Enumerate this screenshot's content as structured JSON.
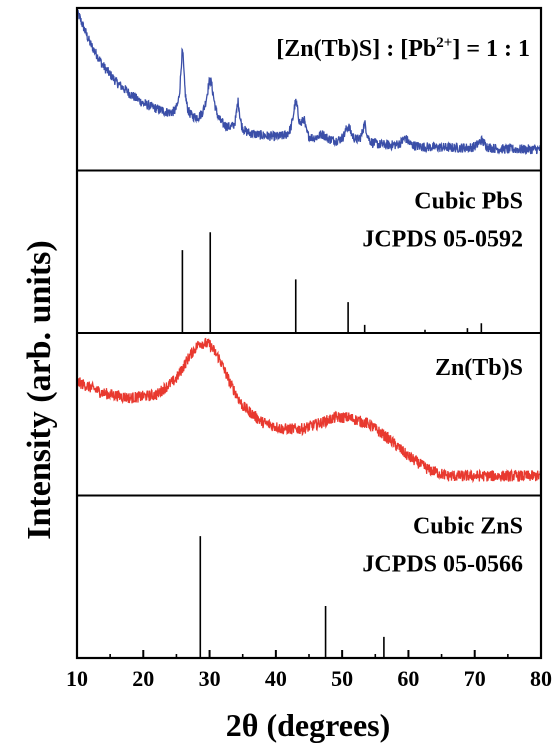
{
  "chart_data": {
    "type": "line",
    "xlabel": "2θ (degrees)",
    "ylabel": "Intensity (arb. units)",
    "xlim": [
      10,
      80
    ],
    "x_ticks": [
      "10",
      "20",
      "30",
      "40",
      "50",
      "60",
      "70",
      "80"
    ],
    "panels": [
      {
        "label_main": "[Zn(Tb)S] : [Pb",
        "label_sup": "2+",
        "label_end": "] = 1 : 1",
        "color": "#3b4fa8",
        "kind": "pattern",
        "series": {
          "base": [
            [
              10,
              0.98
            ],
            [
              12,
              0.78
            ],
            [
              14,
              0.64
            ],
            [
              16,
              0.54
            ],
            [
              18,
              0.47
            ],
            [
              20,
              0.41
            ],
            [
              24,
              0.34
            ],
            [
              28,
              0.29
            ],
            [
              32,
              0.25
            ],
            [
              36,
              0.22
            ],
            [
              40,
              0.2
            ],
            [
              45,
              0.18
            ],
            [
              50,
              0.165
            ],
            [
              55,
              0.155
            ],
            [
              60,
              0.145
            ],
            [
              65,
              0.14
            ],
            [
              70,
              0.135
            ],
            [
              75,
              0.13
            ],
            [
              80,
              0.13
            ]
          ],
          "peaks": [
            [
              25.9,
              0.4,
              0.35
            ],
            [
              30.1,
              0.28,
              0.7
            ],
            [
              34.3,
              0.18,
              0.3
            ],
            [
              43.0,
              0.22,
              0.5
            ],
            [
              44.2,
              0.1,
              0.3
            ],
            [
              50.9,
              0.1,
              0.6
            ],
            [
              53.4,
              0.12,
              0.4
            ],
            [
              47.0,
              0.04,
              0.8
            ],
            [
              59.5,
              0.05,
              0.6
            ],
            [
              71.0,
              0.05,
              0.6
            ]
          ],
          "noise": 0.03
        }
      },
      {
        "label_line1": "Cubic PbS",
        "label_line2": "JCPDS 05-0592",
        "color": "#000000",
        "kind": "sticks",
        "sticks": [
          [
            25.9,
            0.51
          ],
          [
            30.1,
            0.62
          ],
          [
            43.0,
            0.33
          ],
          [
            50.9,
            0.19
          ],
          [
            53.4,
            0.05
          ],
          [
            62.5,
            0.02
          ],
          [
            68.9,
            0.03
          ],
          [
            71.0,
            0.06
          ]
        ]
      },
      {
        "label_line1": "Zn(Tb)S",
        "color": "#e8392f",
        "kind": "pattern",
        "series": {
          "base": [
            [
              10,
              0.7
            ],
            [
              14,
              0.63
            ],
            [
              18,
              0.6
            ],
            [
              22,
              0.62
            ],
            [
              25,
              0.72
            ],
            [
              27,
              0.86
            ],
            [
              28.5,
              0.94
            ],
            [
              30,
              0.93
            ],
            [
              31.5,
              0.84
            ],
            [
              33,
              0.7
            ],
            [
              35,
              0.55
            ],
            [
              38,
              0.45
            ],
            [
              41,
              0.41
            ],
            [
              44,
              0.41
            ],
            [
              47,
              0.45
            ],
            [
              49,
              0.48
            ],
            [
              51,
              0.48
            ],
            [
              54,
              0.44
            ],
            [
              57,
              0.35
            ],
            [
              60,
              0.24
            ],
            [
              63,
              0.16
            ],
            [
              66,
              0.12
            ],
            [
              70,
              0.12
            ],
            [
              75,
              0.12
            ],
            [
              80,
              0.12
            ]
          ],
          "peaks": [],
          "noise": 0.035
        }
      },
      {
        "label_line1": "Cubic ZnS",
        "label_line2": "JCPDS 05-0566",
        "color": "#000000",
        "kind": "sticks",
        "sticks": [
          [
            28.6,
            0.75
          ],
          [
            47.5,
            0.32
          ],
          [
            56.3,
            0.13
          ]
        ]
      }
    ]
  }
}
